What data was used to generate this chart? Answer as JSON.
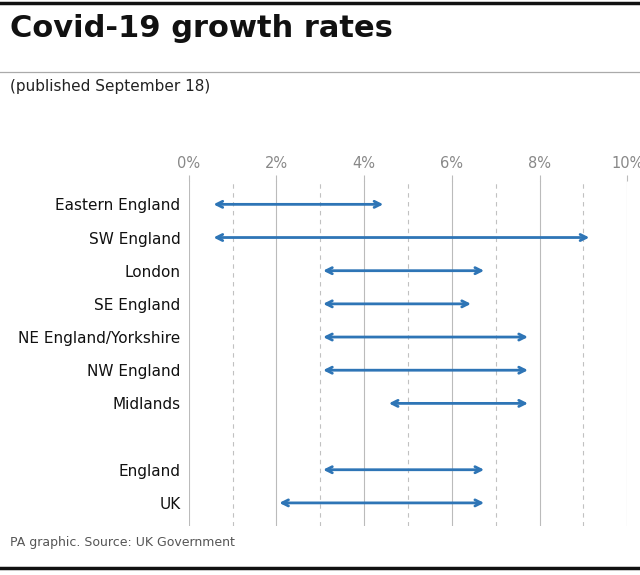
{
  "title": "Covid-19 growth rates",
  "subtitle": "(published September 18)",
  "source": "PA graphic. Source: UK Government",
  "xlim": [
    0,
    10
  ],
  "xticks": [
    0,
    2,
    4,
    6,
    8,
    10
  ],
  "xtick_labels": [
    "0%",
    "2%",
    "4%",
    "6%",
    "8%",
    "10%"
  ],
  "regions": [
    "Eastern England",
    "SW England",
    "London",
    "SE England",
    "NE England/Yorkshire",
    "NW England",
    "Midlands",
    "",
    "England",
    "UK"
  ],
  "ranges": [
    [
      0.5,
      4.5
    ],
    [
      0.5,
      9.2
    ],
    [
      3.0,
      6.8
    ],
    [
      3.0,
      6.5
    ],
    [
      3.0,
      7.8
    ],
    [
      3.0,
      7.8
    ],
    [
      4.5,
      7.8
    ],
    [
      null,
      null
    ],
    [
      3.0,
      6.8
    ],
    [
      2.0,
      6.8
    ]
  ],
  "arrow_color": "#2e75b6",
  "bg_color": "#ffffff",
  "title_fontsize": 22,
  "subtitle_fontsize": 11,
  "label_fontsize": 11,
  "tick_fontsize": 10.5,
  "source_fontsize": 9,
  "grid_solid_color": "#bbbbbb",
  "grid_dashed_color": "#bbbbbb",
  "title_color": "#111111",
  "subtitle_color": "#222222",
  "tick_color": "#888888",
  "label_color": "#111111",
  "source_color": "#555555",
  "border_top_color": "#111111",
  "border_bottom_color": "#111111",
  "sep_line_color": "#aaaaaa"
}
